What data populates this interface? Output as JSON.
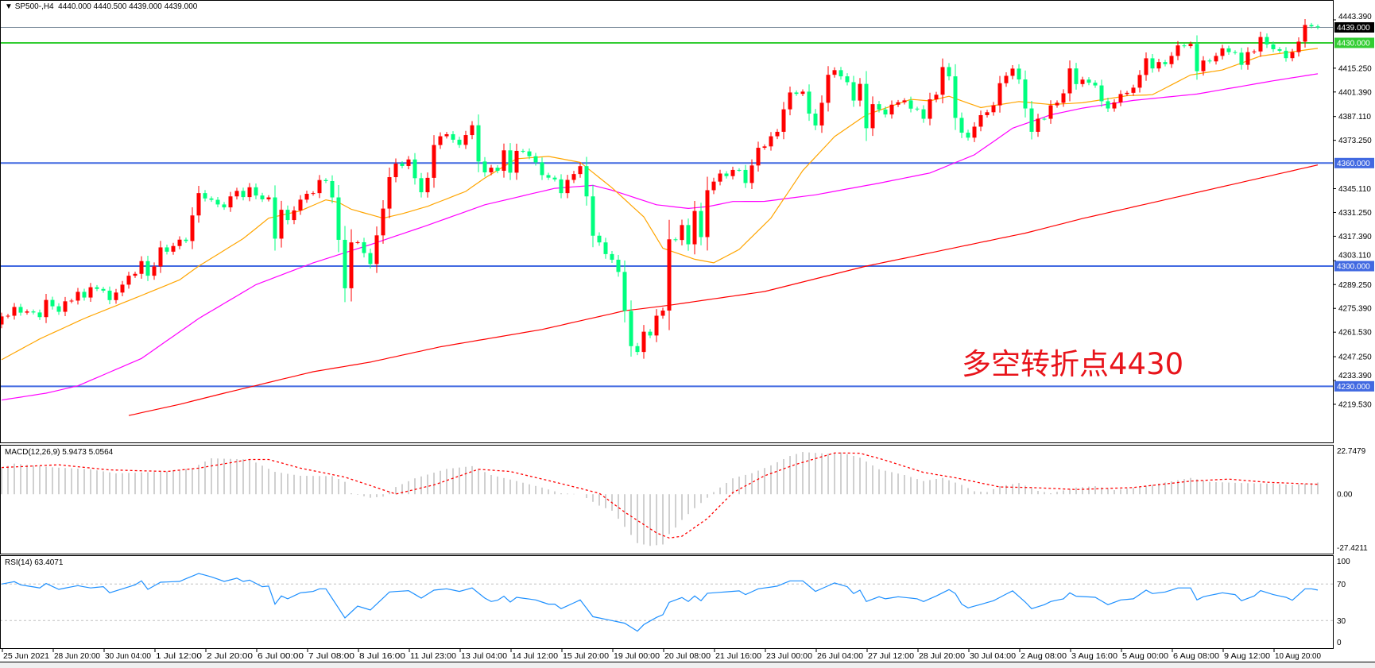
{
  "header": {
    "symbol_menu_icon": "triangle-down-icon",
    "title": "SP500-,H4  4440.000 4440.500 4439.000 4439.000"
  },
  "annotation": "多空转折点4430",
  "colors": {
    "bull_candle": "#ff0000",
    "bear_candle": "#00ff7f",
    "ma_fast": "#ffa500",
    "ma_mid": "#ff00ff",
    "ma_slow": "#ff0000",
    "level_line": "#4169e1",
    "pivot_line": "#32cd32",
    "bid_line": "#778899",
    "macd_histogram": "#c0c0c0",
    "macd_signal": "#ff0000",
    "rsi_line": "#1e90ff",
    "rsi_levels": "#c0c0c0"
  },
  "price_axis": {
    "labels": [
      "4443.390",
      "4415.250",
      "4401.390",
      "4387.110",
      "4373.250",
      "4345.110",
      "4331.250",
      "4317.390",
      "4303.110",
      "4289.250",
      "4275.390",
      "4261.530",
      "4247.250",
      "4233.390",
      "4219.530"
    ],
    "bid_label": "4439.000",
    "levels": [
      {
        "label": "4430.000",
        "value": 4430,
        "kind": "pivot"
      },
      {
        "label": "4360.000",
        "value": 4360,
        "kind": "level"
      },
      {
        "label": "4300.000",
        "value": 4300,
        "kind": "level"
      },
      {
        "label": "4230.000",
        "value": 4230,
        "kind": "level"
      }
    ]
  },
  "macd": {
    "title": "MACD(12,26,9) 5.9473 5.0564",
    "axis_labels": [
      "22.7479",
      "0.00",
      "-27.4211"
    ]
  },
  "rsi": {
    "title": "RSI(14) 63.4071",
    "axis_labels": [
      "100",
      "70",
      "30",
      "0"
    ]
  },
  "time_axis": {
    "labels": [
      "25 Jun 2021",
      "28 Jun 20:00",
      "30 Jun 04:00",
      "1 Jul 12:00",
      "2 Jul 20:00",
      "6 Jul 00:00",
      "7 Jul 08:00",
      "8 Jul 16:00",
      "11 Jul 23:00",
      "13 Jul 04:00",
      "14 Jul 12:00",
      "15 Jul 20:00",
      "19 Jul 00:00",
      "20 Jul 08:00",
      "21 Jul 16:00",
      "23 Jul 00:00",
      "26 Jul 04:00",
      "27 Jul 12:00",
      "28 Jul 20:00",
      "30 Jul 04:00",
      "2 Aug 08:00",
      "3 Aug 16:00",
      "5 Aug 00:00",
      "6 Aug 08:00",
      "9 Aug 12:00",
      "10 Aug 20:00"
    ]
  },
  "chart_data": {
    "type": "candlestick",
    "timeframe": "H4",
    "price_range": [
      4219.53,
      4443.39
    ],
    "first_open": 4266,
    "close": [
      4270.7,
      4271.1,
      4276.2,
      4272.9,
      4273.6,
      4273.0,
      4270.3,
      4280.3,
      4276.6,
      4273.4,
      4279.5,
      4279.9,
      4285.0,
      4281.7,
      4287.7,
      4286.7,
      4285.7,
      4280.2,
      4284.6,
      4289.2,
      4294.4,
      4295.5,
      4302.9,
      4294.4,
      4299.8,
      4310.9,
      4308.4,
      4311.7,
      4315.4,
      4314.6,
      4329.5,
      4342.5,
      4339.4,
      4338.6,
      4335.9,
      4334.2,
      4340.6,
      4343.8,
      4340.2,
      4345.9,
      4341.1,
      4338.9,
      4340.0,
      4316.0,
      4332.8,
      4326.8,
      4332.4,
      4338.7,
      4342.1,
      4342.5,
      4350.1,
      4349.5,
      4340.0,
      4315.3,
      4287.1,
      4313.8,
      4313.9,
      4307.6,
      4301.2,
      4317.9,
      4333.5,
      4351.8,
      4359.7,
      4358.3,
      4362.1,
      4351.2,
      4343.0,
      4351.4,
      4370.5,
      4375.6,
      4376.8,
      4373.6,
      4370.6,
      4376.3,
      4382.0,
      4360.9,
      4354.6,
      4357.3,
      4355.5,
      4367.4,
      4354.4,
      4367.1,
      4366.8,
      4364.0,
      4360.4,
      4353.0,
      4351.5,
      4350.5,
      4342.5,
      4350.2,
      4353.6,
      4358.2,
      4340.6,
      4317.7,
      4313.8,
      4307.0,
      4303.7,
      4296.6,
      4273.9,
      4253.4,
      4250.0,
      4261.8,
      4259.6,
      4271.1,
      4274.1,
      4315.6,
      4315.2,
      4323.9,
      4312.7,
      4332.1,
      4316.9,
      4344.2,
      4349.2,
      4353.9,
      4352.4,
      4356.0,
      4356.0,
      4348.4,
      4358.6,
      4368.9,
      4369.7,
      4375.6,
      4378.2,
      4391.3,
      4401.1,
      4400.3,
      4401.6,
      4388.8,
      4381.9,
      4395.1,
      4411.4,
      4414.1,
      4410.5,
      4407.1,
      4396.4,
      4406.1,
      4380.3,
      4394.3,
      4391.2,
      4388.3,
      4394.0,
      4395.4,
      4396.5,
      4391.7,
      4391.3,
      4385.8,
      4397.1,
      4399.8,
      4415.9,
      4410.5,
      4386.3,
      4377.7,
      4374.8,
      4381.2,
      4387.9,
      4389.6,
      4393.6,
      4406.5,
      4410.8,
      4415.0,
      4408.7,
      4391.8,
      4378.2,
      4385.8,
      4385.8,
      4393.6,
      4395.1,
      4400.6,
      4415.1,
      4406.0,
      4408.6,
      4406.8,
      4405.2,
      4396.0,
      4391.8,
      4395.3,
      4400.2,
      4400.9,
      4403.9,
      4411.3,
      4421.0,
      4415.1,
      4418.8,
      4417.6,
      4422.4,
      4428.5,
      4428.1,
      4429.4,
      4413.5,
      4419.7,
      4419.2,
      4422.4,
      4426.8,
      4424.6,
      4424.3,
      4417.2,
      4424.6,
      4425.0,
      4433.4,
      4429.1,
      4426.3,
      4425.4,
      4421.1,
      4424.6,
      4430.7,
      4440.4,
      4439.6,
      4439.0
    ],
    "moving_averages": {
      "fast": [
        [
          0,
          4245.5
        ],
        [
          6,
          4257.6
        ],
        [
          13,
          4269.5
        ],
        [
          22,
          4282.9
        ],
        [
          28,
          4292
        ],
        [
          31,
          4300
        ],
        [
          38,
          4316
        ],
        [
          42,
          4327.9
        ],
        [
          47,
          4332.2
        ],
        [
          51,
          4338.6
        ],
        [
          53,
          4337.1
        ],
        [
          55,
          4333.1
        ],
        [
          60,
          4327.9
        ],
        [
          63,
          4330.5
        ],
        [
          67,
          4334.8
        ],
        [
          73,
          4343.5
        ],
        [
          76,
          4351.3
        ],
        [
          81,
          4362.5
        ],
        [
          86,
          4363.9
        ],
        [
          91,
          4360.4
        ],
        [
          96,
          4345.6
        ],
        [
          101,
          4328.7
        ],
        [
          104,
          4310.4
        ],
        [
          109,
          4304
        ],
        [
          112,
          4301.9
        ],
        [
          116,
          4309.7
        ],
        [
          121,
          4328
        ],
        [
          126,
          4355.6
        ],
        [
          131,
          4375.4
        ],
        [
          136,
          4388.1
        ],
        [
          143,
          4397.1
        ],
        [
          146,
          4396.2
        ],
        [
          149,
          4398.9
        ],
        [
          154,
          4392.3
        ],
        [
          160,
          4395.8
        ],
        [
          165,
          4394.1
        ],
        [
          170,
          4395.1
        ],
        [
          177,
          4399.2
        ],
        [
          181,
          4399.8
        ],
        [
          187,
          4411.3
        ],
        [
          192,
          4414.2
        ],
        [
          198,
          4422.3
        ],
        [
          207,
          4426.8
        ]
      ],
      "mid": [
        [
          0,
          4222
        ],
        [
          7,
          4226
        ],
        [
          12,
          4230.3
        ],
        [
          22,
          4246.2
        ],
        [
          31,
          4269.5
        ],
        [
          40,
          4289.2
        ],
        [
          49,
          4301.9
        ],
        [
          58,
          4312.5
        ],
        [
          67,
          4323.8
        ],
        [
          76,
          4335.7
        ],
        [
          87,
          4345.3
        ],
        [
          93,
          4347
        ],
        [
          96,
          4344.2
        ],
        [
          103,
          4335.7
        ],
        [
          108,
          4333.6
        ],
        [
          111,
          4334.6
        ],
        [
          115,
          4337.6
        ],
        [
          120,
          4337.7
        ],
        [
          128,
          4341.5
        ],
        [
          138,
          4348.3
        ],
        [
          146,
          4354.2
        ],
        [
          153,
          4364.8
        ],
        [
          159,
          4380.3
        ],
        [
          165,
          4388.1
        ],
        [
          170,
          4392
        ],
        [
          178,
          4396.5
        ],
        [
          188,
          4400.2
        ],
        [
          200,
          4407.9
        ],
        [
          207,
          4412
        ]
      ],
      "slow": [
        [
          20,
          4213
        ],
        [
          28,
          4219.5
        ],
        [
          35,
          4226
        ],
        [
          49,
          4238.5
        ],
        [
          58,
          4244.1
        ],
        [
          69,
          4253
        ],
        [
          85,
          4263.1
        ],
        [
          98,
          4274
        ],
        [
          105,
          4277.2
        ],
        [
          120,
          4285.2
        ],
        [
          136,
          4300
        ],
        [
          161,
          4319.2
        ],
        [
          170,
          4327.7
        ],
        [
          207,
          4358.9
        ]
      ]
    },
    "macd_range": [
      -27.4211,
      22.7479
    ],
    "macd_histogram": [
      [
        0,
        13.3
      ],
      [
        2,
        15.6
      ],
      [
        8,
        13.7
      ],
      [
        14,
        12.7
      ],
      [
        18,
        10.6
      ],
      [
        26,
        11.6
      ],
      [
        30,
        13.3
      ],
      [
        33,
        18.3
      ],
      [
        39,
        17.7
      ],
      [
        43,
        11.4
      ],
      [
        47,
        9.4
      ],
      [
        52,
        9.2
      ],
      [
        54,
        6.3
      ],
      [
        55,
        0.5
      ],
      [
        58,
        -1.8
      ],
      [
        60,
        -1.2
      ],
      [
        62,
        3.7
      ],
      [
        65,
        8.1
      ],
      [
        70,
        12.9
      ],
      [
        74,
        14.3
      ],
      [
        77,
        9.8
      ],
      [
        81,
        6.7
      ],
      [
        85,
        3.4
      ],
      [
        88,
        0.5
      ],
      [
        91,
        0
      ],
      [
        94,
        -5.8
      ],
      [
        96,
        -8.4
      ],
      [
        98,
        -16.6
      ],
      [
        100,
        -24.9
      ],
      [
        102,
        -26.3
      ],
      [
        104,
        -25.6
      ],
      [
        105,
        -20.3
      ],
      [
        106,
        -17
      ],
      [
        107,
        -13.1
      ],
      [
        109,
        -7.1
      ],
      [
        111,
        -1.8
      ],
      [
        112,
        1.1
      ],
      [
        115,
        8.1
      ],
      [
        118,
        10.7
      ],
      [
        121,
        14.7
      ],
      [
        124,
        19.5
      ],
      [
        126,
        21.5
      ],
      [
        130,
        20.6
      ],
      [
        132,
        21.3
      ],
      [
        135,
        18.6
      ],
      [
        138,
        12.7
      ],
      [
        142,
        9.8
      ],
      [
        145,
        6.7
      ],
      [
        148,
        8.3
      ],
      [
        151,
        4.75
      ],
      [
        153,
        1.5
      ],
      [
        155,
        1.1
      ],
      [
        157,
        4.1
      ],
      [
        160,
        5.7
      ],
      [
        163,
        1.7
      ],
      [
        165,
        0.5
      ],
      [
        169,
        3.4
      ],
      [
        172,
        4.1
      ],
      [
        175,
        2.1
      ],
      [
        178,
        3.2
      ],
      [
        182,
        5.4
      ],
      [
        187,
        8.3
      ],
      [
        190,
        6.3
      ],
      [
        195,
        5.7
      ],
      [
        200,
        5.4
      ],
      [
        203,
        4.75
      ],
      [
        207,
        5.9473
      ]
    ],
    "macd_signal": [
      [
        0,
        13.6
      ],
      [
        9,
        15
      ],
      [
        17,
        12.4
      ],
      [
        26,
        11.6
      ],
      [
        31,
        13.3
      ],
      [
        39,
        17.7
      ],
      [
        42,
        17.7
      ],
      [
        47,
        13.3
      ],
      [
        54,
        8.7
      ],
      [
        62,
        0.1
      ],
      [
        68,
        4.75
      ],
      [
        75,
        12.7
      ],
      [
        80,
        11.6
      ],
      [
        88,
        5.4
      ],
      [
        94,
        0.5
      ],
      [
        98,
        -9.1
      ],
      [
        103,
        -19.7
      ],
      [
        105,
        -22.3
      ],
      [
        107,
        -21.4
      ],
      [
        111,
        -12.4
      ],
      [
        115,
        0.8
      ],
      [
        120,
        9.4
      ],
      [
        125,
        15.3
      ],
      [
        131,
        21
      ],
      [
        135,
        20.9
      ],
      [
        139,
        17.3
      ],
      [
        145,
        11.1
      ],
      [
        150,
        8.4
      ],
      [
        157,
        3.7
      ],
      [
        162,
        3.4
      ],
      [
        169,
        2.4
      ],
      [
        178,
        3.4
      ],
      [
        187,
        6.7
      ],
      [
        193,
        7.7
      ],
      [
        199,
        6.1
      ],
      [
        207,
        5.0564
      ]
    ],
    "rsi_levels": [
      70,
      30
    ],
    "rsi": [
      [
        0,
        70
      ],
      [
        2,
        72.6
      ],
      [
        3,
        69.1
      ],
      [
        6,
        65.7
      ],
      [
        7,
        70.6
      ],
      [
        9,
        64.2
      ],
      [
        12,
        68.3
      ],
      [
        14,
        65.7
      ],
      [
        16,
        67.1
      ],
      [
        17,
        60.4
      ],
      [
        21,
        69.1
      ],
      [
        22,
        73.5
      ],
      [
        23,
        64.2
      ],
      [
        25,
        72
      ],
      [
        28,
        72.9
      ],
      [
        31,
        81.6
      ],
      [
        33,
        77.8
      ],
      [
        35,
        72.9
      ],
      [
        37,
        76.4
      ],
      [
        38,
        72.9
      ],
      [
        39,
        74.3
      ],
      [
        41,
        67.1
      ],
      [
        42,
        67.7
      ],
      [
        43,
        48
      ],
      [
        44,
        57
      ],
      [
        45,
        53.8
      ],
      [
        47,
        60.4
      ],
      [
        49,
        61.9
      ],
      [
        50,
        64.8
      ],
      [
        51,
        64.8
      ],
      [
        54,
        32.9
      ],
      [
        56,
        45.9
      ],
      [
        58,
        41.6
      ],
      [
        61,
        61.3
      ],
      [
        64,
        62.8
      ],
      [
        66,
        54.6
      ],
      [
        68,
        63.3
      ],
      [
        70,
        64.8
      ],
      [
        72,
        61.9
      ],
      [
        74,
        65.7
      ],
      [
        76,
        54.6
      ],
      [
        77,
        50.9
      ],
      [
        78,
        52.3
      ],
      [
        79,
        56.7
      ],
      [
        80,
        50.3
      ],
      [
        81,
        55.5
      ],
      [
        84,
        52.6
      ],
      [
        86,
        48
      ],
      [
        87,
        48
      ],
      [
        88,
        43
      ],
      [
        90,
        49.4
      ],
      [
        91,
        52.6
      ],
      [
        93,
        34.3
      ],
      [
        96,
        30
      ],
      [
        98,
        27.1
      ],
      [
        100,
        18.4
      ],
      [
        101,
        25.6
      ],
      [
        103,
        33.5
      ],
      [
        104,
        36.4
      ],
      [
        105,
        50
      ],
      [
        106,
        52.6
      ],
      [
        107,
        55.2
      ],
      [
        108,
        50.9
      ],
      [
        109,
        57
      ],
      [
        110,
        51.7
      ],
      [
        111,
        59.9
      ],
      [
        116,
        62.5
      ],
      [
        117,
        58.4
      ],
      [
        119,
        64.8
      ],
      [
        122,
        67.7
      ],
      [
        124,
        73.5
      ],
      [
        126,
        73.5
      ],
      [
        128,
        61.9
      ],
      [
        131,
        71.2
      ],
      [
        133,
        67.1
      ],
      [
        134,
        59.6
      ],
      [
        135,
        63.3
      ],
      [
        136,
        50.9
      ],
      [
        138,
        56.1
      ],
      [
        139,
        53.8
      ],
      [
        141,
        56.1
      ],
      [
        144,
        53.8
      ],
      [
        145,
        50.9
      ],
      [
        147,
        57
      ],
      [
        149,
        63.9
      ],
      [
        150,
        59.6
      ],
      [
        151,
        48
      ],
      [
        152,
        43.9
      ],
      [
        155,
        49.7
      ],
      [
        156,
        51.7
      ],
      [
        158,
        59
      ],
      [
        159,
        62.5
      ],
      [
        161,
        50.3
      ],
      [
        162,
        43
      ],
      [
        164,
        47.4
      ],
      [
        165,
        50.9
      ],
      [
        167,
        53.8
      ],
      [
        168,
        60.4
      ],
      [
        169,
        56.7
      ],
      [
        172,
        55.5
      ],
      [
        174,
        47.4
      ],
      [
        176,
        52.6
      ],
      [
        178,
        53.8
      ],
      [
        180,
        63.3
      ],
      [
        181,
        59.6
      ],
      [
        183,
        61.3
      ],
      [
        185,
        65.7
      ],
      [
        187,
        65.7
      ],
      [
        188,
        52.6
      ],
      [
        189,
        56.1
      ],
      [
        192,
        60.4
      ],
      [
        194,
        58.4
      ],
      [
        195,
        51.7
      ],
      [
        197,
        57
      ],
      [
        198,
        62.8
      ],
      [
        200,
        58.4
      ],
      [
        202,
        55.5
      ],
      [
        203,
        52.3
      ],
      [
        204,
        58.4
      ],
      [
        205,
        64.8
      ],
      [
        206,
        64.8
      ],
      [
        207,
        63.4071
      ]
    ]
  }
}
